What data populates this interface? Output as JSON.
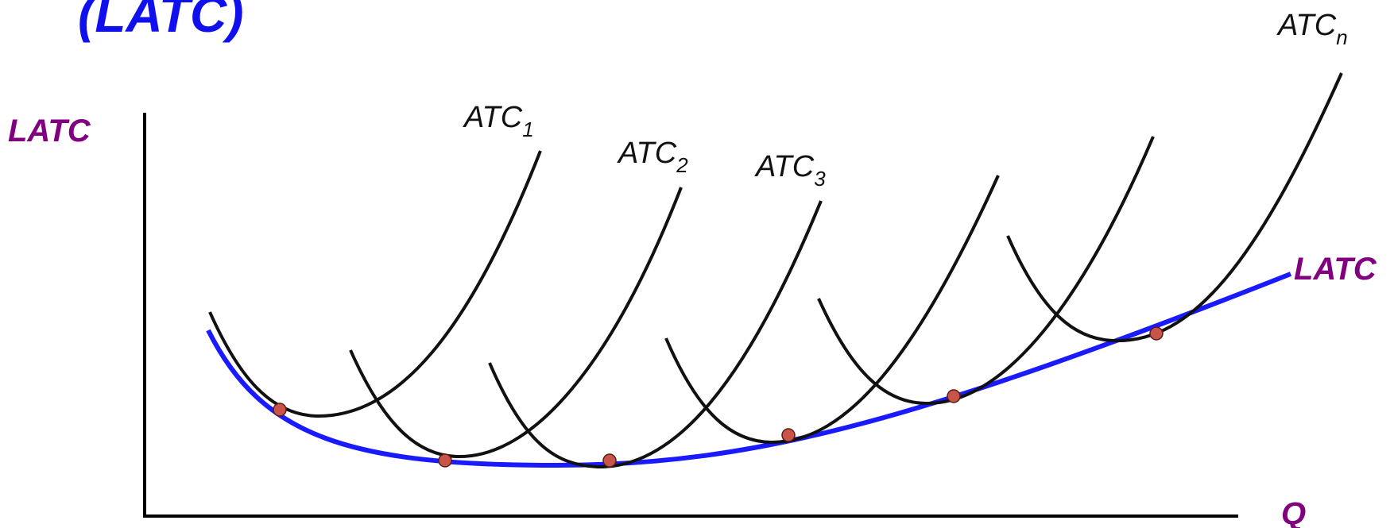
{
  "title": "(LATC)",
  "y_axis_label": "LATC",
  "x_axis_label": "Q",
  "envelope_label": "LATC",
  "short_run_curves": [
    {
      "base": "ATC",
      "sub": "1"
    },
    {
      "base": "ATC",
      "sub": "2"
    },
    {
      "base": "ATC",
      "sub": "3"
    },
    {
      "base": "ATC",
      "sub": ""
    },
    {
      "base": "ATC",
      "sub": ""
    },
    {
      "base": "ATC",
      "sub": "n"
    }
  ],
  "colors": {
    "title": "#1010ee",
    "axis_labels": "#800080",
    "envelope": "#1a1aff",
    "curves": "#111111",
    "axes": "#000000",
    "tangency_points": "#c8554a"
  }
}
